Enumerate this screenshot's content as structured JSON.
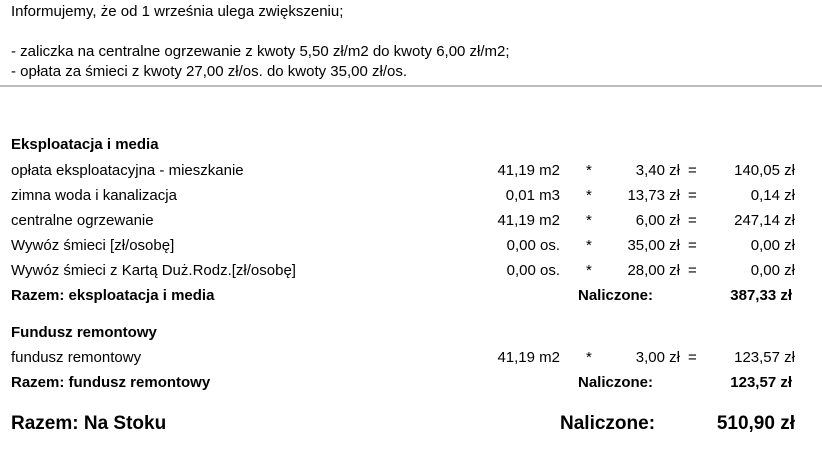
{
  "notice": {
    "intro": "Informujemy, że od 1 września ulega zwiększeniu;",
    "lines": [
      "- zaliczka na centralne ogrzewanie z kwoty 5,50 zł/m2 do kwoty 6,00 zł/m2;",
      "- opłata za śmieci z kwoty 27,00 zł/os. do kwoty 35,00 zł/os."
    ]
  },
  "sections": [
    {
      "title": "Eksploatacja i media",
      "rows": [
        {
          "label": "opłata eksploatacyjna - mieszkanie",
          "qty": "41,19 m2",
          "op": "*",
          "price": "3,40 zł",
          "eq": "=",
          "total": "140,05 zł"
        },
        {
          "label": "zimna woda i kanalizacja",
          "qty": "0,01 m3",
          "op": "*",
          "price": "13,73 zł",
          "eq": "=",
          "total": "0,14 zł"
        },
        {
          "label": "centralne ogrzewanie",
          "qty": "41,19 m2",
          "op": "*",
          "price": "6,00 zł",
          "eq": "=",
          "total": "247,14 zł"
        },
        {
          "label": "Wywóz śmieci [zł/osobę]",
          "qty": "0,00 os.",
          "op": "*",
          "price": "35,00 zł",
          "eq": "=",
          "total": "0,00 zł"
        },
        {
          "label": "Wywóz śmieci z Kartą Duż.Rodz.[zł/osobę]",
          "qty": "0,00 os.",
          "op": "*",
          "price": "28,00 zł",
          "eq": "=",
          "total": "0,00 zł"
        }
      ],
      "summary": {
        "label": "Razem: eksploatacja i media",
        "charged_label": "Naliczone:",
        "total": "387,33 zł"
      }
    },
    {
      "title": "Fundusz remontowy",
      "rows": [
        {
          "label": "fundusz remontowy",
          "qty": "41,19 m2",
          "op": "*",
          "price": "3,00 zł",
          "eq": "=",
          "total": "123,57 zł"
        }
      ],
      "summary": {
        "label": "Razem: fundusz remontowy",
        "charged_label": "Naliczone:",
        "total": "123,57 zł"
      }
    }
  ],
  "grand_total": {
    "label": "Razem: Na Stoku",
    "charged_label": "Naliczone:",
    "total": "510,90 zł"
  }
}
